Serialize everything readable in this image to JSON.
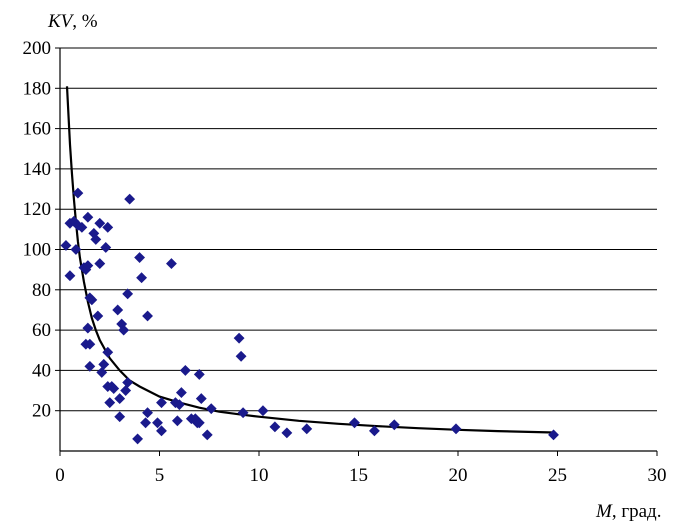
{
  "chart_data": {
    "type": "scatter",
    "ylabel_var": "KV",
    "ylabel_unit": ", %",
    "xlabel_var": "M",
    "xlabel_unit": ", град.",
    "xlim": [
      0,
      30
    ],
    "ylim": [
      0,
      200
    ],
    "xticks": [
      0,
      5,
      10,
      15,
      20,
      25,
      30
    ],
    "yticks": [
      20,
      40,
      60,
      80,
      100,
      120,
      140,
      160,
      180,
      200
    ],
    "grid": "horizontal",
    "legend": "none",
    "marker_color": "#1a1a8c",
    "trend_color": "#000000",
    "trend_curve": [
      [
        0.35,
        181
      ],
      [
        0.5,
        152
      ],
      [
        0.6,
        138
      ],
      [
        0.7,
        125
      ],
      [
        0.8,
        114
      ],
      [
        0.9,
        104
      ],
      [
        1.0,
        96
      ],
      [
        1.2,
        84
      ],
      [
        1.4,
        74
      ],
      [
        1.6,
        66
      ],
      [
        1.8,
        60
      ],
      [
        2.0,
        55
      ],
      [
        2.5,
        46
      ],
      [
        3.0,
        40
      ],
      [
        3.5,
        35
      ],
      [
        4.0,
        32
      ],
      [
        5.0,
        27
      ],
      [
        6.0,
        24
      ],
      [
        7.0,
        21.5
      ],
      [
        8.0,
        19.5
      ],
      [
        9.0,
        18.2
      ],
      [
        10.0,
        17
      ],
      [
        12.0,
        15
      ],
      [
        14.0,
        13.5
      ],
      [
        16.0,
        12.3
      ],
      [
        18.0,
        11.3
      ],
      [
        20.0,
        10.5
      ],
      [
        22.0,
        9.9
      ],
      [
        24.8,
        9.2
      ]
    ],
    "points": [
      [
        0.3,
        102
      ],
      [
        0.5,
        113
      ],
      [
        0.5,
        87
      ],
      [
        0.7,
        114
      ],
      [
        0.8,
        100
      ],
      [
        0.9,
        128
      ],
      [
        0.9,
        112
      ],
      [
        1.1,
        111
      ],
      [
        1.2,
        91
      ],
      [
        1.3,
        90
      ],
      [
        1.3,
        53
      ],
      [
        1.4,
        116
      ],
      [
        1.4,
        92
      ],
      [
        1.4,
        61
      ],
      [
        1.5,
        76
      ],
      [
        1.5,
        53
      ],
      [
        1.5,
        42
      ],
      [
        1.6,
        75
      ],
      [
        1.7,
        108
      ],
      [
        1.8,
        105
      ],
      [
        1.9,
        67
      ],
      [
        2.0,
        113
      ],
      [
        2.0,
        93
      ],
      [
        2.1,
        39
      ],
      [
        2.2,
        43
      ],
      [
        2.3,
        101
      ],
      [
        2.4,
        111
      ],
      [
        2.4,
        49
      ],
      [
        2.4,
        32
      ],
      [
        2.5,
        24
      ],
      [
        2.6,
        32
      ],
      [
        2.7,
        31
      ],
      [
        2.9,
        70
      ],
      [
        3.0,
        26
      ],
      [
        3.0,
        17
      ],
      [
        3.1,
        63
      ],
      [
        3.2,
        60
      ],
      [
        3.3,
        30
      ],
      [
        3.4,
        78
      ],
      [
        3.4,
        34
      ],
      [
        3.5,
        125
      ],
      [
        3.9,
        6
      ],
      [
        4.0,
        96
      ],
      [
        4.1,
        86
      ],
      [
        4.3,
        14
      ],
      [
        4.4,
        19
      ],
      [
        4.4,
        67
      ],
      [
        4.9,
        14
      ],
      [
        5.1,
        10
      ],
      [
        5.1,
        24
      ],
      [
        5.6,
        93
      ],
      [
        5.8,
        24
      ],
      [
        5.9,
        15
      ],
      [
        6.0,
        23
      ],
      [
        6.1,
        29
      ],
      [
        6.3,
        40
      ],
      [
        6.6,
        16
      ],
      [
        6.8,
        16
      ],
      [
        6.9,
        14
      ],
      [
        7.0,
        14
      ],
      [
        7.0,
        38
      ],
      [
        7.1,
        26
      ],
      [
        7.4,
        8
      ],
      [
        7.6,
        21
      ],
      [
        9.0,
        56
      ],
      [
        9.1,
        47
      ],
      [
        9.2,
        19
      ],
      [
        10.2,
        20
      ],
      [
        10.8,
        12
      ],
      [
        11.4,
        9
      ],
      [
        12.4,
        11
      ],
      [
        14.8,
        14
      ],
      [
        15.8,
        10
      ],
      [
        16.8,
        13
      ],
      [
        19.9,
        11
      ],
      [
        24.8,
        8
      ]
    ]
  }
}
